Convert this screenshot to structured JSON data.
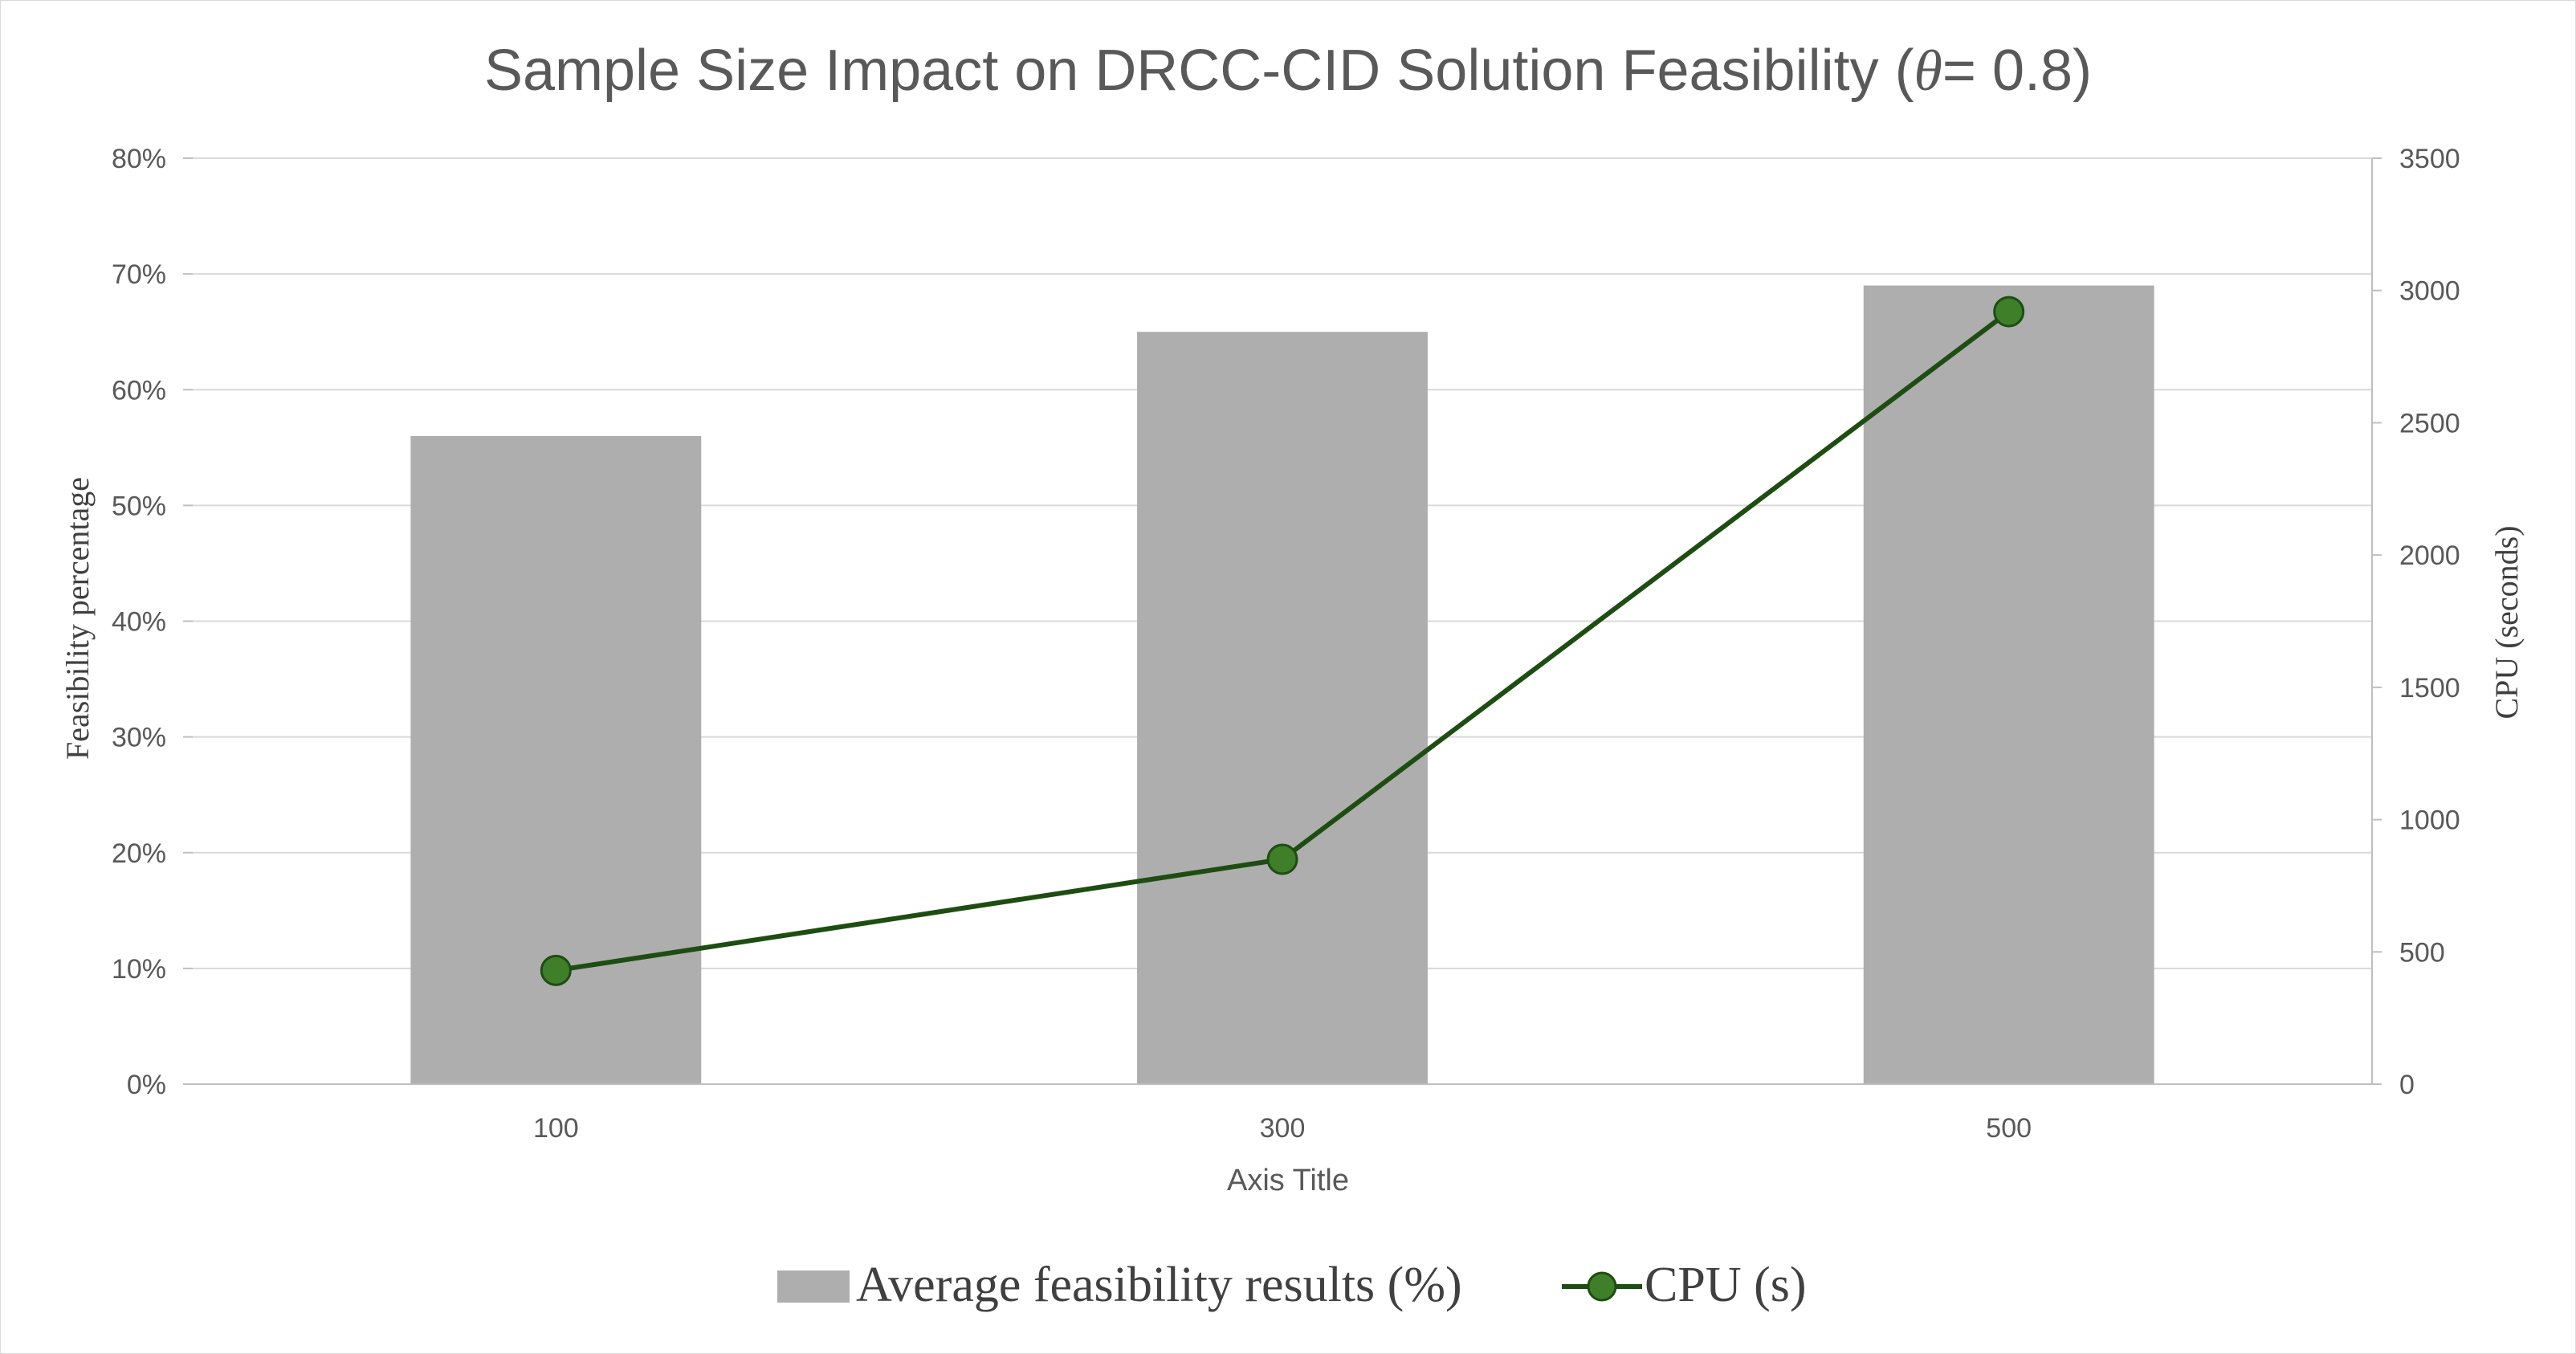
{
  "chart_data": {
    "type": "bar",
    "title": {
      "prefix": "Sample Size Impact on DRCC-CID Solution Feasibility (",
      "symbol": "θ",
      "suffix": "= 0.8)"
    },
    "categories": [
      "100",
      "300",
      "500"
    ],
    "xlabel": "Axis Title",
    "ylabel": "Feasibility percentage",
    "y2label": "CPU (seconds)",
    "ylim": [
      0,
      80
    ],
    "y2lim": [
      0,
      3500
    ],
    "yticks": [
      "0%",
      "10%",
      "20%",
      "30%",
      "40%",
      "50%",
      "60%",
      "70%",
      "80%"
    ],
    "y2ticks": [
      "0",
      "500",
      "1000",
      "1500",
      "2000",
      "2500",
      "3000",
      "3500"
    ],
    "grid": true,
    "legend_position": "bottom",
    "series": [
      {
        "name": "Average feasibility results (%)",
        "type": "bar",
        "axis": "left",
        "color": "#aeaeae",
        "values": [
          56,
          65,
          69
        ]
      },
      {
        "name": "CPU (s)",
        "type": "line",
        "axis": "right",
        "color": "#1e4d12",
        "marker_color": "#3f7f2a",
        "values": [
          430,
          850,
          2920
        ]
      }
    ]
  }
}
